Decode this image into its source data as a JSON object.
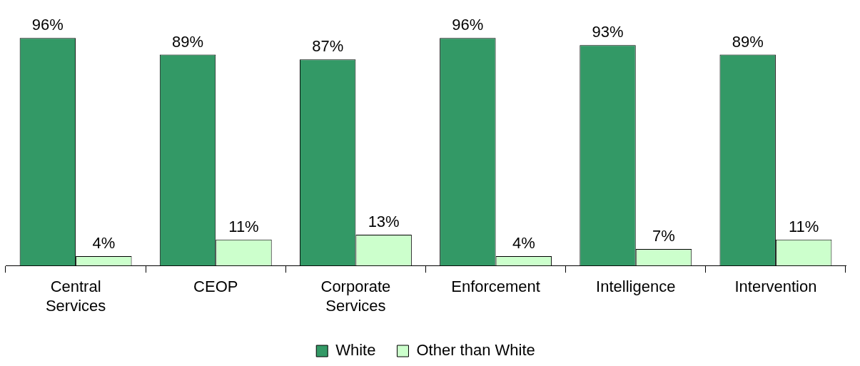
{
  "chart_data": {
    "type": "bar",
    "categories": [
      "Central Services",
      "CEOP",
      "Corporate Services",
      "Enforcement",
      "Intelligence",
      "Intervention"
    ],
    "series": [
      {
        "name": "White",
        "color": "#339966",
        "values": [
          96,
          89,
          87,
          96,
          93,
          89
        ],
        "value_labels": [
          "96%",
          "89%",
          "87%",
          "96%",
          "93%",
          "89%"
        ]
      },
      {
        "name": "Other than White",
        "color": "#ccffcc",
        "values": [
          4,
          11,
          13,
          4,
          7,
          11
        ],
        "value_labels": [
          "4%",
          "11%",
          "13%",
          "4%",
          "7%",
          "11%"
        ]
      }
    ],
    "legend": "bottom",
    "grid": false
  }
}
